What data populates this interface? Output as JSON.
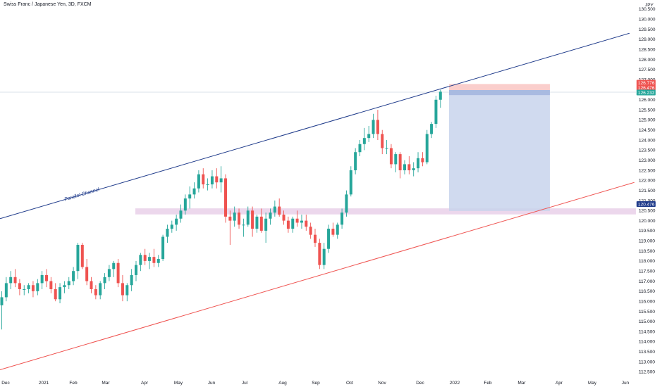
{
  "header": {
    "title": "Swiss Franc / Japanese Yen, 3D, FXCM",
    "currency": "JPY"
  },
  "colors": {
    "up": "#26a69a",
    "down": "#ef5350",
    "channel_upper": "#1e3a8a",
    "channel_lower": "#ef5350",
    "support_zone": "#e6c9e6",
    "target_zone": "#c8d3ec",
    "stop_zone": "#f9c9c6",
    "axis_text": "#131722"
  },
  "chart_data": {
    "type": "candlestick",
    "title": "Swiss Franc / Japanese Yen, 3D, FXCM",
    "x_ticks": [
      "Dec",
      "2021",
      "Feb",
      "Mar",
      "Apr",
      "May",
      "Jun",
      "Jul",
      "Aug",
      "Sep",
      "Oct",
      "Nov",
      "Dec",
      "2022",
      "Feb",
      "Mar",
      "Apr",
      "May",
      "Jun"
    ],
    "y_ticks": [
      "112.500",
      "113.000",
      "113.500",
      "114.000",
      "114.500",
      "115.000",
      "115.500",
      "116.000",
      "116.500",
      "117.000",
      "117.500",
      "118.000",
      "118.500",
      "119.000",
      "119.500",
      "120.000",
      "120.500",
      "121.000",
      "121.500",
      "122.000",
      "122.500",
      "123.000",
      "123.500",
      "124.000",
      "124.500",
      "125.000",
      "125.500",
      "126.000",
      "126.500",
      "127.000",
      "127.500",
      "128.000",
      "128.500",
      "129.000",
      "129.500",
      "130.000",
      "130.500"
    ],
    "ylim": [
      112.2,
      130.6
    ],
    "price_tags": [
      {
        "label": "126.776",
        "value": 126.776,
        "color": "#ef5350"
      },
      {
        "label": "126.476",
        "value": 126.476,
        "color": "#ef5350"
      },
      {
        "label": "126.232",
        "value": 126.232,
        "color": "#26a69a"
      },
      {
        "label": "120.476",
        "value": 120.476,
        "color": "#1e3a8a"
      }
    ],
    "annotations": {
      "channel_label": "Parallel Channel"
    },
    "candles": [
      {
        "o": 115.8,
        "h": 116.5,
        "l": 114.6,
        "c": 116.2
      },
      {
        "o": 116.2,
        "h": 117.2,
        "l": 116.0,
        "c": 116.9
      },
      {
        "o": 116.9,
        "h": 117.5,
        "l": 116.6,
        "c": 117.2
      },
      {
        "o": 117.2,
        "h": 117.6,
        "l": 116.7,
        "c": 116.9
      },
      {
        "o": 116.9,
        "h": 117.1,
        "l": 116.3,
        "c": 116.6
      },
      {
        "o": 116.6,
        "h": 116.8,
        "l": 116.3,
        "c": 116.6
      },
      {
        "o": 116.6,
        "h": 116.9,
        "l": 116.4,
        "c": 116.8
      },
      {
        "o": 116.8,
        "h": 117.0,
        "l": 116.2,
        "c": 116.5
      },
      {
        "o": 116.5,
        "h": 117.1,
        "l": 116.3,
        "c": 116.9
      },
      {
        "o": 116.9,
        "h": 117.5,
        "l": 116.6,
        "c": 117.3
      },
      {
        "o": 117.3,
        "h": 117.6,
        "l": 116.7,
        "c": 117.0
      },
      {
        "o": 117.0,
        "h": 117.2,
        "l": 116.4,
        "c": 116.6
      },
      {
        "o": 116.6,
        "h": 116.9,
        "l": 116.0,
        "c": 116.1
      },
      {
        "o": 116.1,
        "h": 116.9,
        "l": 115.9,
        "c": 116.7
      },
      {
        "o": 116.7,
        "h": 117.0,
        "l": 116.4,
        "c": 116.8
      },
      {
        "o": 116.8,
        "h": 117.2,
        "l": 116.6,
        "c": 117.0
      },
      {
        "o": 117.0,
        "h": 117.7,
        "l": 116.8,
        "c": 117.5
      },
      {
        "o": 117.5,
        "h": 118.9,
        "l": 117.1,
        "c": 118.8
      },
      {
        "o": 118.8,
        "h": 118.9,
        "l": 117.6,
        "c": 117.7
      },
      {
        "o": 117.7,
        "h": 118.1,
        "l": 116.8,
        "c": 117.0
      },
      {
        "o": 117.0,
        "h": 117.2,
        "l": 116.4,
        "c": 116.6
      },
      {
        "o": 116.6,
        "h": 116.8,
        "l": 116.1,
        "c": 116.3
      },
      {
        "o": 116.3,
        "h": 117.0,
        "l": 116.1,
        "c": 116.9
      },
      {
        "o": 116.9,
        "h": 117.4,
        "l": 116.6,
        "c": 117.2
      },
      {
        "o": 117.2,
        "h": 117.8,
        "l": 117.0,
        "c": 117.6
      },
      {
        "o": 117.6,
        "h": 118.0,
        "l": 117.2,
        "c": 117.9
      },
      {
        "o": 117.9,
        "h": 118.1,
        "l": 116.7,
        "c": 116.9
      },
      {
        "o": 116.9,
        "h": 117.3,
        "l": 116.0,
        "c": 116.3
      },
      {
        "o": 116.3,
        "h": 116.9,
        "l": 116.0,
        "c": 116.8
      },
      {
        "o": 116.8,
        "h": 117.6,
        "l": 116.5,
        "c": 117.3
      },
      {
        "o": 117.3,
        "h": 118.0,
        "l": 117.0,
        "c": 117.8
      },
      {
        "o": 117.8,
        "h": 118.4,
        "l": 117.5,
        "c": 118.3
      },
      {
        "o": 118.3,
        "h": 118.6,
        "l": 117.8,
        "c": 118.0
      },
      {
        "o": 118.0,
        "h": 118.4,
        "l": 117.6,
        "c": 118.2
      },
      {
        "o": 118.2,
        "h": 118.6,
        "l": 117.7,
        "c": 117.9
      },
      {
        "o": 117.9,
        "h": 118.3,
        "l": 117.7,
        "c": 118.1
      },
      {
        "o": 118.1,
        "h": 119.3,
        "l": 118.0,
        "c": 119.2
      },
      {
        "o": 119.2,
        "h": 119.8,
        "l": 118.9,
        "c": 119.6
      },
      {
        "o": 119.6,
        "h": 120.0,
        "l": 119.4,
        "c": 119.8
      },
      {
        "o": 119.8,
        "h": 120.3,
        "l": 119.5,
        "c": 120.1
      },
      {
        "o": 120.1,
        "h": 120.8,
        "l": 119.9,
        "c": 120.5
      },
      {
        "o": 120.5,
        "h": 121.3,
        "l": 120.3,
        "c": 121.1
      },
      {
        "o": 121.1,
        "h": 121.7,
        "l": 120.6,
        "c": 121.3
      },
      {
        "o": 121.3,
        "h": 121.9,
        "l": 121.1,
        "c": 121.6
      },
      {
        "o": 121.6,
        "h": 122.5,
        "l": 121.4,
        "c": 122.3
      },
      {
        "o": 122.3,
        "h": 122.6,
        "l": 121.6,
        "c": 121.8
      },
      {
        "o": 121.8,
        "h": 122.1,
        "l": 121.5,
        "c": 121.8
      },
      {
        "o": 121.8,
        "h": 122.5,
        "l": 121.6,
        "c": 122.2
      },
      {
        "o": 122.2,
        "h": 122.6,
        "l": 121.6,
        "c": 121.9
      },
      {
        "o": 121.9,
        "h": 122.7,
        "l": 121.4,
        "c": 122.1
      },
      {
        "o": 122.1,
        "h": 122.3,
        "l": 119.9,
        "c": 120.2
      },
      {
        "o": 120.2,
        "h": 120.5,
        "l": 118.8,
        "c": 120.0
      },
      {
        "o": 120.0,
        "h": 120.7,
        "l": 119.7,
        "c": 120.4
      },
      {
        "o": 120.4,
        "h": 120.6,
        "l": 119.6,
        "c": 119.8
      },
      {
        "o": 119.8,
        "h": 120.1,
        "l": 119.2,
        "c": 119.8
      },
      {
        "o": 119.8,
        "h": 120.7,
        "l": 119.7,
        "c": 120.5
      },
      {
        "o": 120.5,
        "h": 120.7,
        "l": 119.2,
        "c": 119.6
      },
      {
        "o": 119.6,
        "h": 120.3,
        "l": 119.4,
        "c": 120.2
      },
      {
        "o": 120.2,
        "h": 120.6,
        "l": 119.4,
        "c": 119.5
      },
      {
        "o": 119.5,
        "h": 120.4,
        "l": 118.9,
        "c": 120.1
      },
      {
        "o": 120.1,
        "h": 120.6,
        "l": 119.8,
        "c": 120.4
      },
      {
        "o": 120.4,
        "h": 121.0,
        "l": 120.2,
        "c": 120.7
      },
      {
        "o": 120.7,
        "h": 121.1,
        "l": 120.2,
        "c": 120.3
      },
      {
        "o": 120.3,
        "h": 120.5,
        "l": 119.8,
        "c": 120.0
      },
      {
        "o": 120.0,
        "h": 120.2,
        "l": 119.4,
        "c": 119.6
      },
      {
        "o": 119.6,
        "h": 120.2,
        "l": 119.4,
        "c": 120.1
      },
      {
        "o": 120.1,
        "h": 120.5,
        "l": 119.7,
        "c": 119.9
      },
      {
        "o": 119.9,
        "h": 120.3,
        "l": 119.6,
        "c": 120.0
      },
      {
        "o": 120.0,
        "h": 120.3,
        "l": 119.5,
        "c": 119.7
      },
      {
        "o": 119.7,
        "h": 119.9,
        "l": 119.1,
        "c": 119.3
      },
      {
        "o": 119.3,
        "h": 119.6,
        "l": 118.7,
        "c": 118.9
      },
      {
        "o": 118.9,
        "h": 119.1,
        "l": 117.6,
        "c": 117.8
      },
      {
        "o": 117.8,
        "h": 118.9,
        "l": 117.6,
        "c": 118.6
      },
      {
        "o": 118.6,
        "h": 119.8,
        "l": 118.4,
        "c": 119.6
      },
      {
        "o": 119.6,
        "h": 119.9,
        "l": 119.2,
        "c": 119.3
      },
      {
        "o": 119.3,
        "h": 119.9,
        "l": 119.1,
        "c": 119.8
      },
      {
        "o": 119.8,
        "h": 120.6,
        "l": 119.6,
        "c": 120.4
      },
      {
        "o": 120.4,
        "h": 121.5,
        "l": 120.2,
        "c": 121.3
      },
      {
        "o": 121.3,
        "h": 122.7,
        "l": 121.2,
        "c": 122.5
      },
      {
        "o": 122.5,
        "h": 123.6,
        "l": 122.3,
        "c": 123.4
      },
      {
        "o": 123.4,
        "h": 124.0,
        "l": 123.2,
        "c": 123.8
      },
      {
        "o": 123.8,
        "h": 124.6,
        "l": 123.5,
        "c": 124.1
      },
      {
        "o": 124.1,
        "h": 124.7,
        "l": 123.9,
        "c": 124.3
      },
      {
        "o": 124.3,
        "h": 125.3,
        "l": 124.1,
        "c": 125.0
      },
      {
        "o": 125.0,
        "h": 125.5,
        "l": 124.0,
        "c": 124.3
      },
      {
        "o": 124.3,
        "h": 124.5,
        "l": 123.3,
        "c": 123.6
      },
      {
        "o": 123.6,
        "h": 124.0,
        "l": 123.3,
        "c": 123.6
      },
      {
        "o": 123.6,
        "h": 123.8,
        "l": 122.6,
        "c": 122.8
      },
      {
        "o": 122.8,
        "h": 123.4,
        "l": 122.4,
        "c": 123.3
      },
      {
        "o": 123.3,
        "h": 123.4,
        "l": 122.1,
        "c": 122.5
      },
      {
        "o": 122.5,
        "h": 123.0,
        "l": 122.3,
        "c": 122.8
      },
      {
        "o": 122.8,
        "h": 123.2,
        "l": 122.3,
        "c": 122.5
      },
      {
        "o": 122.5,
        "h": 122.9,
        "l": 122.2,
        "c": 122.6
      },
      {
        "o": 122.6,
        "h": 123.4,
        "l": 122.4,
        "c": 123.1
      },
      {
        "o": 123.1,
        "h": 123.4,
        "l": 122.7,
        "c": 122.9
      },
      {
        "o": 122.9,
        "h": 124.5,
        "l": 122.8,
        "c": 124.3
      },
      {
        "o": 124.3,
        "h": 124.9,
        "l": 124.1,
        "c": 124.8
      },
      {
        "o": 124.8,
        "h": 126.2,
        "l": 124.6,
        "c": 126.0
      },
      {
        "o": 126.0,
        "h": 126.5,
        "l": 125.6,
        "c": 126.4
      }
    ],
    "channel": {
      "upper": {
        "x0": 0,
        "y0": 120.1,
        "x1": 893,
        "y1": 129.3
      },
      "lower": {
        "x0": 0,
        "y0": 112.6,
        "x1": 900,
        "y1": 121.9
      }
    },
    "zones": {
      "support": {
        "y_top": 120.61,
        "y_bottom": 120.31
      },
      "target": {
        "y_top": 126.48,
        "y_bottom": 120.48
      },
      "stop": {
        "y_top": 126.78,
        "y_bottom": 126.48
      }
    }
  }
}
